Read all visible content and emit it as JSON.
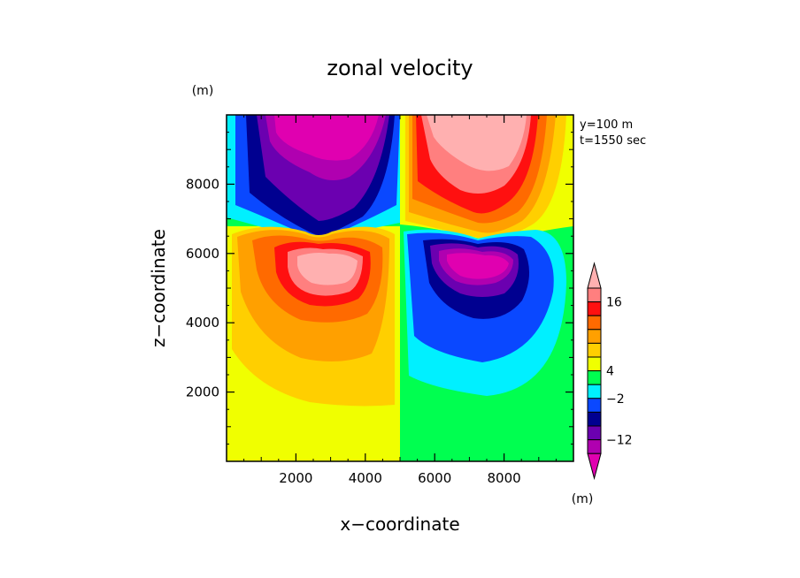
{
  "chart_data": {
    "type": "heatmap",
    "title": "zonal velocity",
    "xlabel": "x−coordinate",
    "ylabel": "z−coordinate",
    "x_unit": "(m)",
    "y_unit": "(m)",
    "xlim": [
      0,
      10000
    ],
    "ylim": [
      0,
      10000
    ],
    "xticks": [
      2000,
      4000,
      6000,
      8000
    ],
    "yticks": [
      2000,
      4000,
      6000,
      8000
    ],
    "xtick_labels": [
      "2000",
      "4000",
      "6000",
      "8000"
    ],
    "ytick_labels": [
      "2000",
      "4000",
      "6000",
      "8000"
    ],
    "info_lines": [
      "y=100 m",
      "t=1550 sec"
    ],
    "colorbar": {
      "labels": [
        "16",
        "4",
        "−2",
        "−12"
      ],
      "colors_top_to_bottom": [
        "#ffb0b0",
        "#ff7f7f",
        "#ff1010",
        "#ff6a00",
        "#ffa000",
        "#ffcf00",
        "#f0ff00",
        "#00ff50",
        "#00f0ff",
        "#0a48ff",
        "#000090",
        "#6b00b0",
        "#b000b0",
        "#e000b0"
      ]
    }
  }
}
